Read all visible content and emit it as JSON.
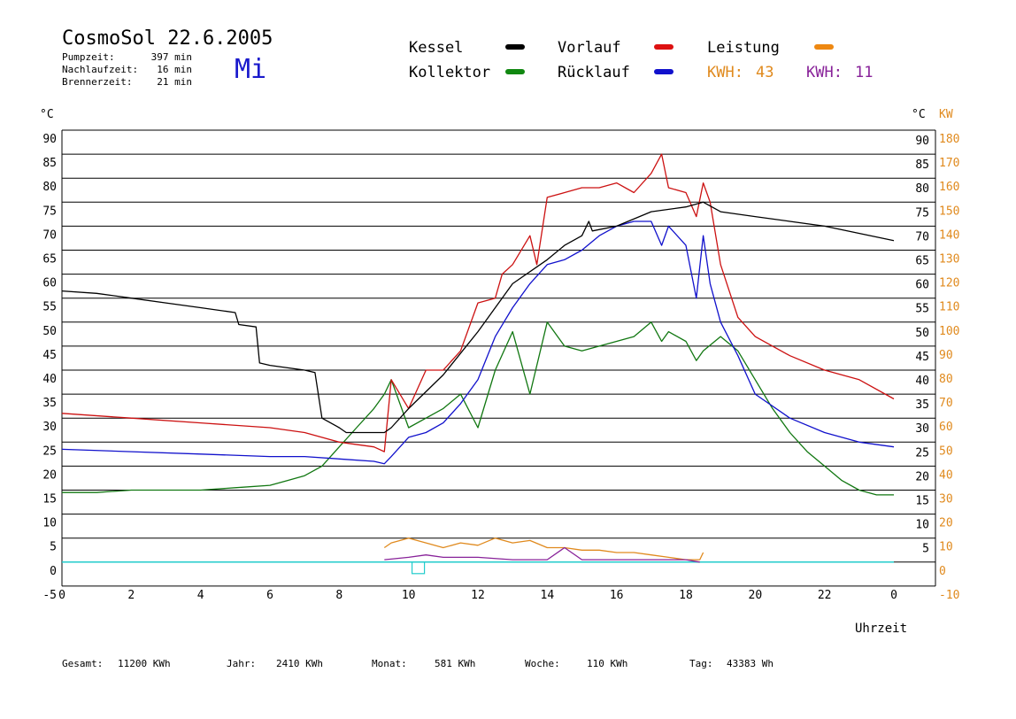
{
  "header": {
    "title": "CosmoSol 22.6.2005",
    "stats": [
      {
        "label": "Pumpzeit:",
        "value": "397 min"
      },
      {
        "label": "Nachlaufzeit:",
        "value": "16 min"
      },
      {
        "label": "Brennerzeit:",
        "value": "21 min"
      }
    ],
    "weekday": "Mi",
    "weekday_color": "#1a1acc"
  },
  "legend": {
    "items": [
      {
        "name": "Kessel",
        "color": "#000000"
      },
      {
        "name": "Vorlauf",
        "color": "#dd1111"
      },
      {
        "name": "Leistung",
        "color": "#ee8811"
      },
      {
        "name": "Kollektor",
        "color": "#118811"
      },
      {
        "name": "Rücklauf",
        "color": "#1111cc"
      }
    ],
    "kwh": [
      {
        "label": "KWH:",
        "value": "43",
        "color": "#e08a1e"
      },
      {
        "label": "KWH:",
        "value": "11",
        "color": "#882299"
      }
    ]
  },
  "footer": [
    {
      "label": "Gesamt:",
      "value": "11200 KWh"
    },
    {
      "label": "Jahr:",
      "value": "2410 KWh"
    },
    {
      "label": "Monat:",
      "value": "581 KWh"
    },
    {
      "label": "Woche:",
      "value": "110 KWh"
    },
    {
      "label": "Tag:",
      "value": "43383 Wh"
    }
  ],
  "colors": {
    "kessel": "#000000",
    "vorlauf": "#cc1111",
    "ruecklauf": "#1111cc",
    "kollektor": "#117711",
    "leistung": "#e08a1e",
    "leistung2": "#882299",
    "baseline": "#22cccc",
    "axis_kw": "#e08a1e"
  },
  "chart_data": {
    "type": "line",
    "xlabel": "Uhrzeit",
    "ylabel_left": "°C",
    "ylabel_right_c": "°C",
    "ylabel_right_kw": "KW",
    "x_ticks": [
      "0",
      "2",
      "4",
      "6",
      "8",
      "10",
      "12",
      "14",
      "16",
      "18",
      "20",
      "22",
      "0"
    ],
    "y_ticks_left": [
      "90",
      "85",
      "80",
      "75",
      "70",
      "65",
      "60",
      "55",
      "50",
      "45",
      "40",
      "35",
      "30",
      "25",
      "20",
      "15",
      "10",
      "5",
      "0",
      "-5"
    ],
    "y_ticks_right_c": [
      "90",
      "85",
      "80",
      "75",
      "70",
      "65",
      "60",
      "55",
      "50",
      "45",
      "40",
      "35",
      "30",
      "25",
      "20",
      "15",
      "10",
      "5"
    ],
    "y_ticks_right_kw": [
      "180",
      "170",
      "160",
      "150",
      "140",
      "130",
      "120",
      "110",
      "100",
      "90",
      "80",
      "70",
      "60",
      "50",
      "40",
      "30",
      "20",
      "10",
      "0",
      "-10"
    ],
    "xlim": [
      0,
      24
    ],
    "ylim": [
      -5,
      92
    ],
    "grid": true,
    "series": [
      {
        "name": "Kessel",
        "key": "kessel",
        "x": [
          0,
          1,
          2,
          3,
          4,
          5,
          5.1,
          5.6,
          5.7,
          6,
          7,
          7.3,
          7.5,
          8,
          8.2,
          9.3,
          9.5,
          10,
          11,
          12,
          13,
          14,
          14.5,
          15,
          15.2,
          15.3,
          16,
          17,
          18,
          18.5,
          19,
          20,
          21,
          22,
          24
        ],
        "y": [
          56.5,
          56,
          55,
          54,
          53,
          52,
          49.5,
          49,
          41.5,
          41,
          40,
          39.5,
          30,
          28,
          27,
          27,
          28,
          32,
          39,
          48,
          58,
          63,
          66,
          68,
          71,
          69,
          70,
          73,
          74,
          75,
          73,
          72,
          71,
          70,
          67
        ]
      },
      {
        "name": "Vorlauf",
        "key": "vorlauf",
        "x": [
          0,
          2,
          4,
          6,
          7,
          8,
          9,
          9.3,
          9.5,
          10,
          10.5,
          11,
          11.5,
          12,
          12.5,
          12.7,
          13,
          13.5,
          13.7,
          14,
          14.5,
          15,
          15.5,
          16,
          16.5,
          17,
          17.3,
          17.5,
          18,
          18.3,
          18.5,
          18.7,
          19,
          19.5,
          20,
          21,
          22,
          23,
          24
        ],
        "y": [
          31,
          30,
          29,
          28,
          27,
          25,
          24,
          23,
          38,
          32,
          40,
          40,
          44,
          54,
          55,
          60,
          62,
          68,
          62,
          76,
          77,
          78,
          78,
          79,
          77,
          81,
          85,
          78,
          77,
          72,
          79,
          75,
          62,
          51,
          47,
          43,
          40,
          38,
          34
        ]
      },
      {
        "name": "Rücklauf",
        "key": "ruecklauf",
        "x": [
          0,
          2,
          4,
          6,
          7,
          8,
          9,
          9.3,
          9.5,
          10,
          10.5,
          11,
          11.5,
          12,
          12.5,
          13,
          13.5,
          14,
          14.5,
          15,
          15.5,
          16,
          16.5,
          17,
          17.3,
          17.5,
          18,
          18.3,
          18.5,
          18.7,
          19,
          19.5,
          20,
          21,
          22,
          23,
          24
        ],
        "y": [
          23.5,
          23,
          22.5,
          22,
          22,
          21.5,
          21,
          20.5,
          22,
          26,
          27,
          29,
          33,
          38,
          47,
          53,
          58,
          62,
          63,
          65,
          68,
          70,
          71,
          71,
          66,
          70,
          66,
          55,
          68,
          58,
          50,
          43,
          35,
          30,
          27,
          25,
          24
        ]
      },
      {
        "name": "Kollektor",
        "key": "kollektor",
        "x": [
          0,
          1,
          2,
          3,
          4,
          5,
          6,
          6.5,
          7,
          7.5,
          8,
          8.5,
          9,
          9.3,
          9.5,
          10,
          10.5,
          11,
          11.5,
          12,
          12.5,
          13,
          13.5,
          14,
          14.5,
          15,
          15.5,
          16,
          16.5,
          17,
          17.3,
          17.5,
          18,
          18.3,
          18.5,
          19,
          19.5,
          20,
          20.5,
          21,
          21.5,
          22,
          22.5,
          23,
          23.5,
          24
        ],
        "y": [
          14.5,
          14.5,
          15,
          15,
          15,
          15.5,
          16,
          17,
          18,
          20,
          24,
          28,
          32,
          35,
          38,
          28,
          30,
          32,
          35,
          28,
          40,
          48,
          35,
          50,
          45,
          44,
          45,
          46,
          47,
          50,
          46,
          48,
          46,
          42,
          44,
          47,
          44,
          38,
          32,
          27,
          23,
          20,
          17,
          15,
          14,
          14
        ]
      },
      {
        "name": "Leistung",
        "key": "leistung",
        "x": [
          9.3,
          9.5,
          10,
          10.5,
          11,
          11.5,
          12,
          12.5,
          13,
          13.5,
          14,
          14.5,
          15,
          15.5,
          16,
          16.5,
          17,
          17.5,
          18,
          18.4,
          18.5
        ],
        "y": [
          3,
          4,
          5,
          4,
          3,
          4,
          3.5,
          5,
          4,
          4.5,
          3,
          3,
          2.5,
          2.5,
          2,
          2,
          1.5,
          1,
          0.5,
          0.5,
          2
        ]
      },
      {
        "name": "Leistung 2",
        "key": "leistung2",
        "x": [
          9.3,
          10,
          10.5,
          11,
          12,
          13,
          14,
          14.5,
          15,
          16,
          17,
          18,
          18.4
        ],
        "y": [
          0.5,
          1,
          1.5,
          1,
          1,
          0.5,
          0.5,
          3,
          0.5,
          0.5,
          0.5,
          0.5,
          0
        ]
      }
    ]
  }
}
